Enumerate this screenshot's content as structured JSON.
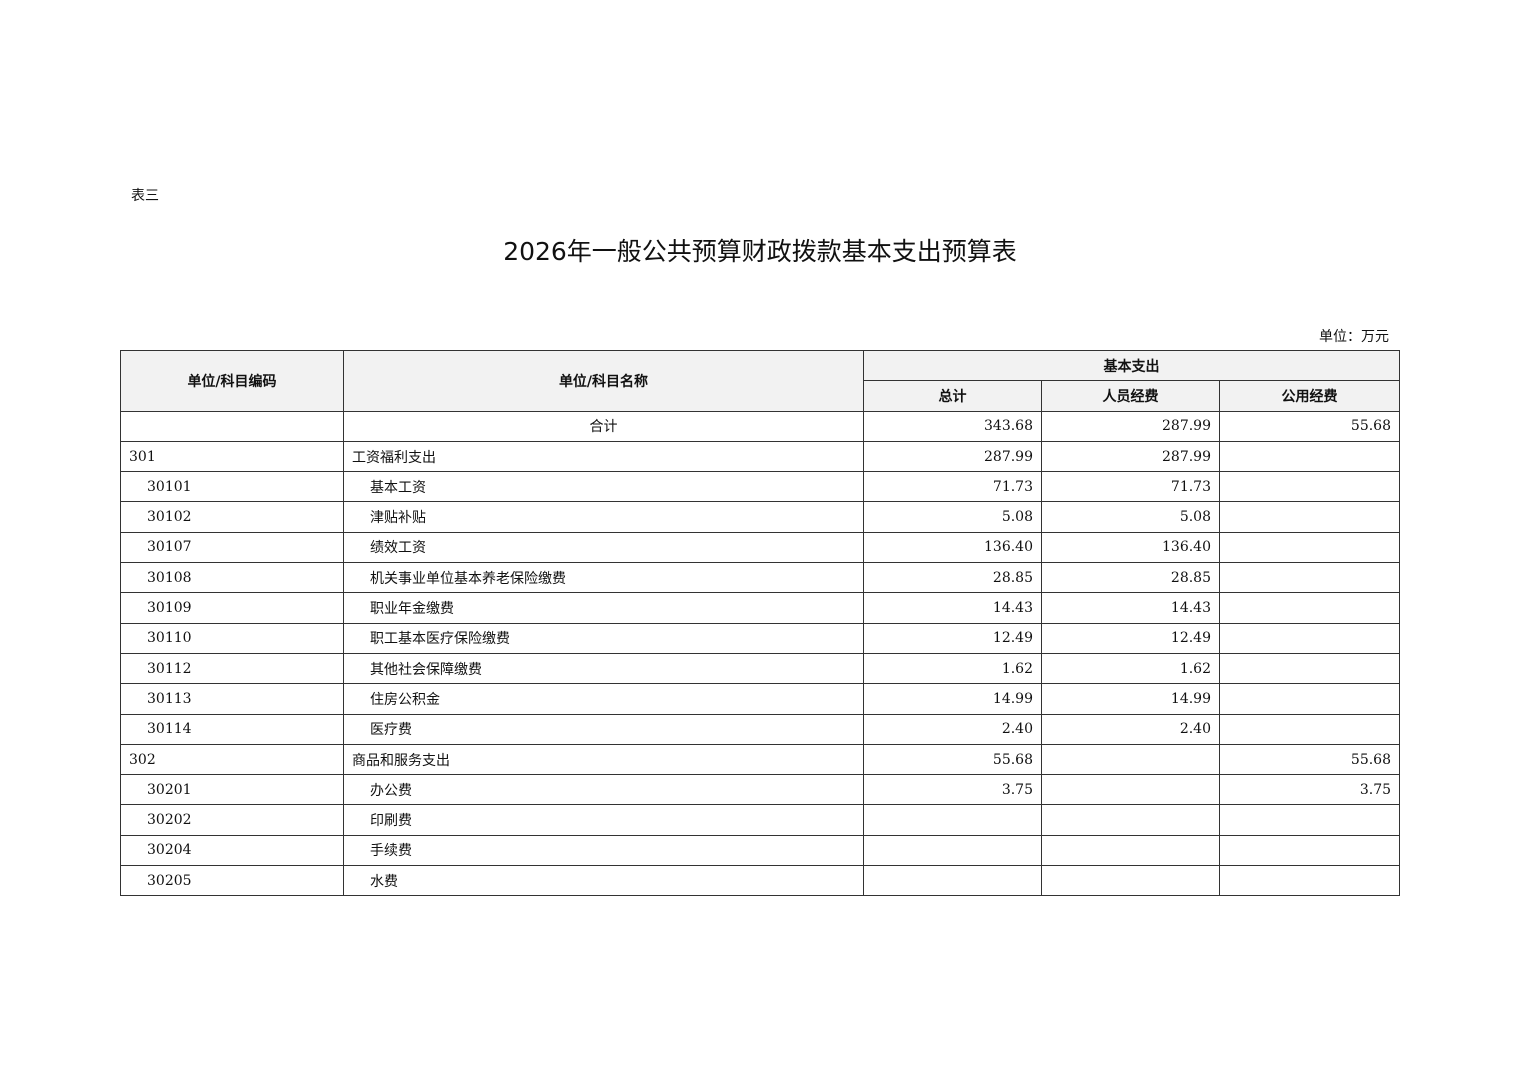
{
  "doc": {
    "label": "表三",
    "title": "2026年一般公共预算财政拨款基本支出预算表",
    "unit": "单位：万元"
  },
  "header": {
    "code": "单位/科目编码",
    "name": "单位/科目名称",
    "group": "基本支出",
    "total": "总计",
    "personnel": "人员经费",
    "public": "公用经费"
  },
  "rows": [
    {
      "code": "",
      "name": "合计",
      "total": "343.68",
      "personnel": "287.99",
      "public": "55.68",
      "level": 0
    },
    {
      "code": "301",
      "name": "工资福利支出",
      "total": "287.99",
      "personnel": "287.99",
      "public": "",
      "level": 1
    },
    {
      "code": "30101",
      "name": "基本工资",
      "total": "71.73",
      "personnel": "71.73",
      "public": "",
      "level": 2
    },
    {
      "code": "30102",
      "name": "津贴补贴",
      "total": "5.08",
      "personnel": "5.08",
      "public": "",
      "level": 2
    },
    {
      "code": "30107",
      "name": "绩效工资",
      "total": "136.40",
      "personnel": "136.40",
      "public": "",
      "level": 2
    },
    {
      "code": "30108",
      "name": "机关事业单位基本养老保险缴费",
      "total": "28.85",
      "personnel": "28.85",
      "public": "",
      "level": 2
    },
    {
      "code": "30109",
      "name": "职业年金缴费",
      "total": "14.43",
      "personnel": "14.43",
      "public": "",
      "level": 2
    },
    {
      "code": "30110",
      "name": "职工基本医疗保险缴费",
      "total": "12.49",
      "personnel": "12.49",
      "public": "",
      "level": 2
    },
    {
      "code": "30112",
      "name": "其他社会保障缴费",
      "total": "1.62",
      "personnel": "1.62",
      "public": "",
      "level": 2
    },
    {
      "code": "30113",
      "name": "住房公积金",
      "total": "14.99",
      "personnel": "14.99",
      "public": "",
      "level": 2
    },
    {
      "code": "30114",
      "name": "医疗费",
      "total": "2.40",
      "personnel": "2.40",
      "public": "",
      "level": 2
    },
    {
      "code": "302",
      "name": "商品和服务支出",
      "total": "55.68",
      "personnel": "",
      "public": "55.68",
      "level": 1
    },
    {
      "code": "30201",
      "name": "办公费",
      "total": "3.75",
      "personnel": "",
      "public": "3.75",
      "level": 2
    },
    {
      "code": "30202",
      "name": "印刷费",
      "total": "",
      "personnel": "",
      "public": "",
      "level": 2
    },
    {
      "code": "30204",
      "name": "手续费",
      "total": "",
      "personnel": "",
      "public": "",
      "level": 2
    },
    {
      "code": "30205",
      "name": "水费",
      "total": "",
      "personnel": "",
      "public": "",
      "level": 2
    }
  ]
}
